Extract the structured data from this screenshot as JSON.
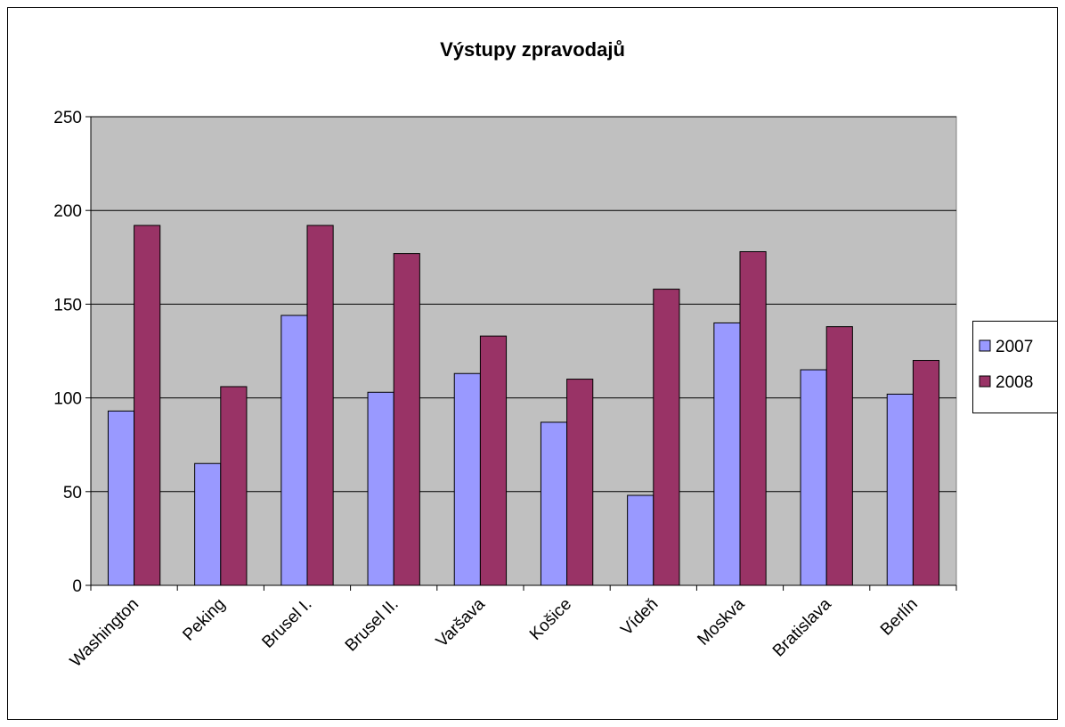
{
  "chart_data": {
    "type": "bar",
    "title": "Výstupy zpravodajů",
    "categories": [
      "Washington",
      "Peking",
      "Brusel I.",
      "Brusel II.",
      "Varšava",
      "Košice",
      "Vídeň",
      "Moskva",
      "Bratislava",
      "Berlín"
    ],
    "series": [
      {
        "name": "2007",
        "color": "#9999ff",
        "values": [
          93,
          65,
          144,
          103,
          113,
          87,
          48,
          140,
          115,
          102
        ]
      },
      {
        "name": "2008",
        "color": "#993366",
        "values": [
          192,
          106,
          192,
          177,
          133,
          110,
          158,
          178,
          138,
          120
        ]
      }
    ],
    "ylim": [
      0,
      250
    ],
    "yticks": [
      0,
      50,
      100,
      150,
      200,
      250
    ],
    "grid": true,
    "legend": "right"
  }
}
